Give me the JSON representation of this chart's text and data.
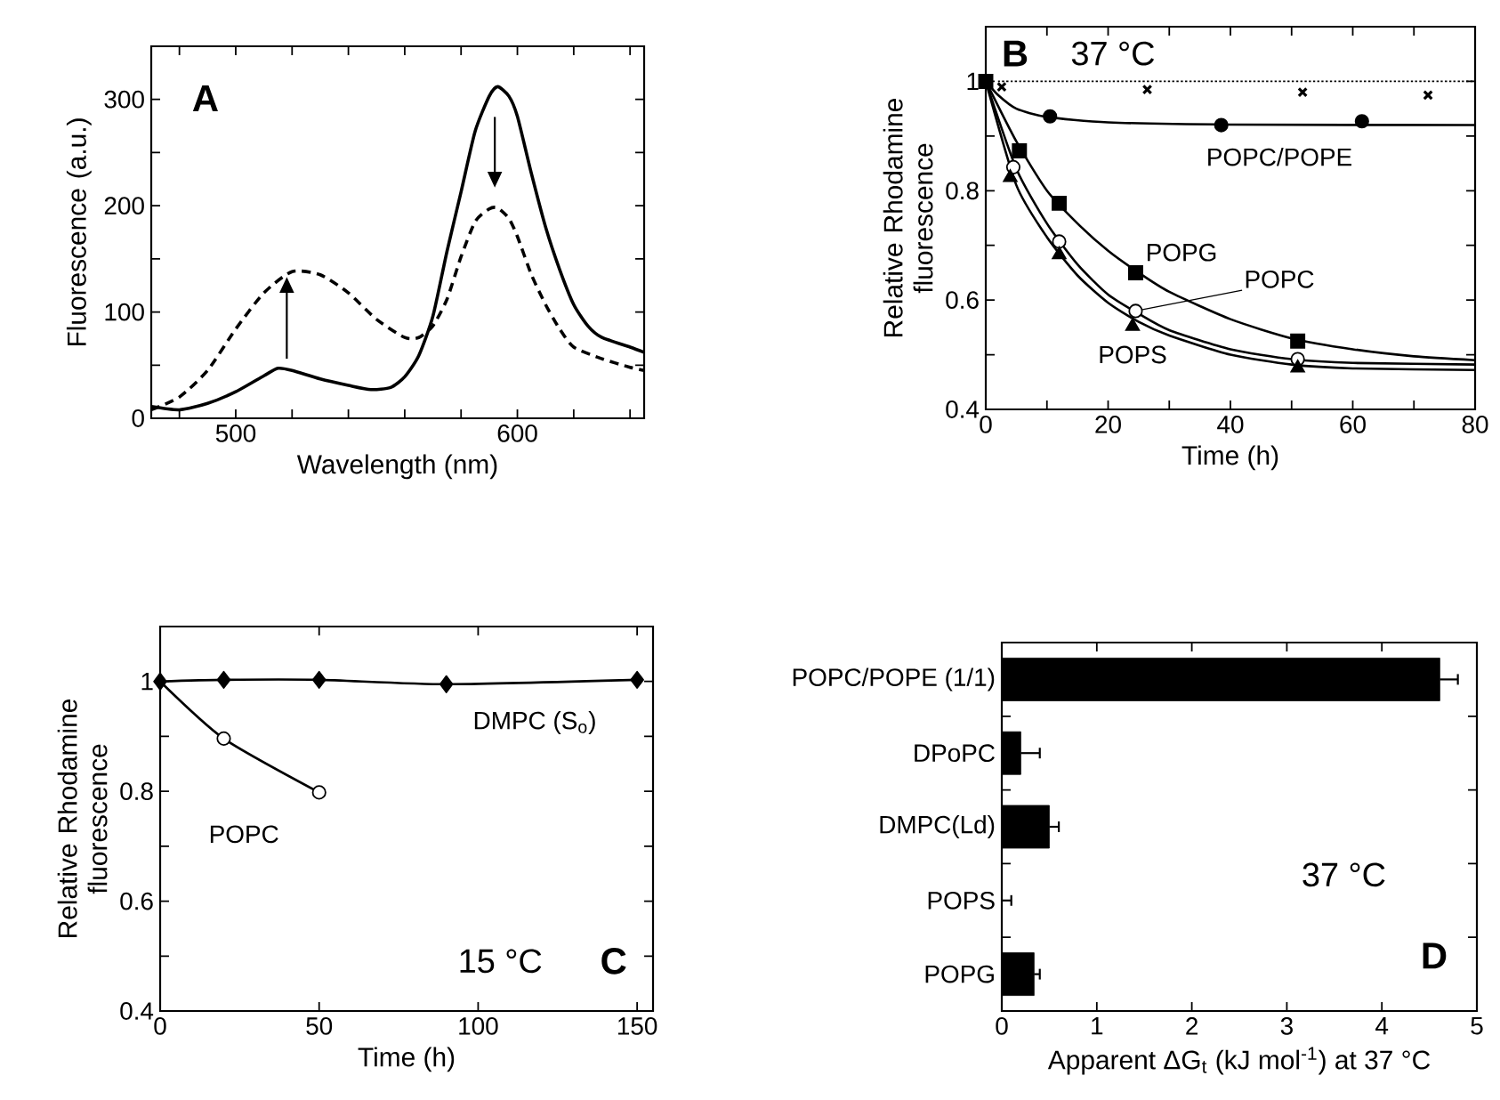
{
  "chart_data": [
    {
      "type": "line",
      "title": "A",
      "xlabel": "Wavelength (nm)",
      "ylabel": "Fluorescence (a.u.)",
      "xlim": [
        470,
        645
      ],
      "ylim": [
        0,
        350
      ],
      "xticks": [
        {
          "value": 480,
          "label": null
        },
        500,
        {
          "value": 520,
          "label": null
        },
        {
          "value": 540,
          "label": null
        },
        {
          "value": 560,
          "label": null
        },
        {
          "value": 580,
          "label": null
        },
        600,
        {
          "value": 620,
          "label": null
        },
        {
          "value": 640,
          "label": null
        }
      ],
      "yticks": [
        0,
        {
          "value": 50,
          "label": null
        },
        100,
        {
          "value": 150,
          "label": null
        },
        200,
        {
          "value": 250,
          "label": null
        },
        300
      ],
      "series": [
        {
          "color": "#000000",
          "line_style": "solid",
          "x": [
            470,
            480,
            490,
            500,
            510,
            515,
            520,
            530,
            540,
            548,
            555,
            560,
            565,
            570,
            575,
            580,
            585,
            590,
            593,
            597,
            600,
            605,
            610,
            615,
            620,
            625,
            630,
            640,
            645
          ],
          "values": [
            11,
            8,
            14,
            25,
            40,
            47,
            45,
            37,
            31,
            27,
            29,
            39,
            59,
            96,
            157,
            213,
            270,
            303,
            312,
            303,
            284,
            230,
            180,
            140,
            107,
            87,
            76,
            67,
            62
          ]
        },
        {
          "color": "#000000",
          "line_style": "dashed",
          "x": [
            470,
            480,
            490,
            500,
            510,
            520,
            530,
            540,
            550,
            560,
            565,
            570,
            575,
            580,
            585,
            590,
            593,
            597,
            600,
            605,
            610,
            615,
            620,
            630,
            640,
            645
          ],
          "values": [
            8,
            20,
            45,
            84,
            118,
            138,
            135,
            118,
            93,
            76,
            76,
            87,
            112,
            152,
            185,
            197,
            198,
            188,
            171,
            135,
            107,
            84,
            67,
            56,
            48,
            45
          ]
        }
      ]
    },
    {
      "type": "line",
      "title": "B",
      "xlabel": "Time (h)",
      "ylabel": "Relative Rhodamine fluorescence",
      "xlim": [
        0,
        80
      ],
      "ylim": [
        0.4,
        1.1
      ],
      "xticks": [
        0,
        {
          "value": 10,
          "label": null
        },
        20,
        {
          "value": 30,
          "label": null
        },
        40,
        {
          "value": 50,
          "label": null
        },
        60,
        {
          "value": 70,
          "label": null
        },
        80
      ],
      "yticks": [
        0.4,
        {
          "value": 0.5,
          "label": null
        },
        0.6,
        {
          "value": 0.7,
          "label": null
        },
        0.8,
        {
          "value": 0.9,
          "label": null
        },
        1
      ],
      "annotations": [
        "37 °C"
      ],
      "series": [
        {
          "type": "line",
          "color": "#000000",
          "line_style": "dotted",
          "marker": "none",
          "x": [
            2,
            80
          ],
          "values": [
            1,
            1
          ]
        },
        {
          "type": "scatter",
          "color": "#000000",
          "marker": "cross",
          "x": [
            2.6,
            26.4,
            51.8,
            72.3
          ],
          "values": [
            0.99,
            0.985,
            0.98,
            0.975
          ]
        },
        {
          "type": "line",
          "color": "#000000",
          "line_style": "solid",
          "marker": "none",
          "x": [
            0,
            2,
            5,
            10,
            20,
            40,
            80
          ],
          "values": [
            1,
            0.975,
            0.95,
            0.935,
            0.925,
            0.921,
            0.92
          ]
        },
        {
          "type": "scatter",
          "name": "POPC/POPE",
          "color": "#000000",
          "marker": "circle",
          "x": [
            10.5,
            38.5,
            61.5
          ],
          "values": [
            0.936,
            0.92,
            0.927
          ]
        },
        {
          "type": "line",
          "color": "#000000",
          "line_style": "solid",
          "marker": "none",
          "x": [
            0,
            5,
            10,
            15,
            20,
            25,
            30,
            40,
            50,
            60,
            70,
            80
          ],
          "values": [
            1,
            0.89,
            0.8,
            0.74,
            0.69,
            0.65,
            0.615,
            0.565,
            0.53,
            0.51,
            0.497,
            0.49
          ]
        },
        {
          "type": "scatter",
          "name": "POPG",
          "color": "#000000",
          "marker": "square",
          "x": [
            0,
            5.5,
            12,
            24.5,
            51
          ],
          "values": [
            1,
            0.873,
            0.777,
            0.65,
            0.525
          ]
        },
        {
          "type": "line",
          "color": "#000000",
          "line_style": "solid",
          "marker": "none",
          "x": [
            0,
            5,
            10,
            15,
            20,
            25,
            30,
            40,
            50,
            60,
            80
          ],
          "values": [
            1,
            0.84,
            0.74,
            0.665,
            0.61,
            0.575,
            0.545,
            0.51,
            0.492,
            0.485,
            0.482
          ]
        },
        {
          "type": "scatter",
          "name": "POPC",
          "color": "#ffffff",
          "marker": "circle",
          "x": [
            4.5,
            12,
            24.5,
            51
          ],
          "values": [
            0.843,
            0.707,
            0.58,
            0.492
          ]
        },
        {
          "type": "line",
          "color": "#000000",
          "line_style": "solid",
          "marker": "none",
          "x": [
            0,
            5,
            10,
            15,
            20,
            25,
            30,
            40,
            50,
            60,
            80
          ],
          "values": [
            1,
            0.81,
            0.715,
            0.645,
            0.595,
            0.56,
            0.535,
            0.5,
            0.482,
            0.475,
            0.472
          ]
        },
        {
          "type": "scatter",
          "name": "POPS",
          "color": "#000000",
          "marker": "triangle",
          "x": [
            4,
            12,
            24,
            51
          ],
          "values": [
            0.824,
            0.683,
            0.552,
            0.476
          ]
        }
      ]
    },
    {
      "type": "line",
      "title": "C",
      "xlabel": "Time (h)",
      "ylabel": "Relative Rhodamine fluorescence",
      "xlim": [
        0,
        155
      ],
      "ylim": [
        0.4,
        1.1
      ],
      "xticks": [
        0,
        50,
        100,
        150
      ],
      "yticks": [
        0.4,
        {
          "value": 0.5,
          "label": null
        },
        0.6,
        {
          "value": 0.7,
          "label": null
        },
        0.8,
        {
          "value": 0.9,
          "label": null
        },
        1
      ],
      "annotations": [
        "15 °C"
      ],
      "series": [
        {
          "type": "line",
          "name": "DMPC (S$_{o}$)",
          "color": "#000000",
          "line_style": "solid",
          "marker": "diamond",
          "x": [
            0,
            20,
            50,
            90,
            150
          ],
          "values": [
            1,
            1.003,
            1.003,
            0.995,
            1.003
          ]
        },
        {
          "type": "line",
          "color": "#000000",
          "line_style": "solid",
          "marker": "none",
          "x": [
            0,
            20,
            50
          ],
          "values": [
            1,
            0.896,
            0.798
          ]
        },
        {
          "type": "scatter",
          "name": "POPC",
          "color": "#ffffff",
          "marker": "circle",
          "x": [
            20,
            50
          ],
          "values": [
            0.896,
            0.798
          ]
        }
      ]
    },
    {
      "type": "bar",
      "orientation": "horizontal",
      "title": "D",
      "xlabel": "Apparent ΔG$_{t}$ (kJ mol$^{-1}$) at 37 °C",
      "xlim": [
        0,
        5
      ],
      "xticks": [
        0,
        1,
        2,
        3,
        4,
        5
      ],
      "categories": [
        "POPC/POPE (1/1)",
        "DPoPC",
        "DMPC(Ld)",
        "POPS",
        "POPG"
      ],
      "values": [
        4.61,
        0.2,
        0.5,
        0,
        0.34
      ],
      "color": "#000000",
      "errors": [
        [
          4.61,
          4.8
        ],
        [
          0.2,
          0.4
        ],
        [
          0.5,
          0.6
        ],
        [
          0,
          0.1
        ],
        [
          0.34,
          0.4
        ]
      ],
      "annotations": [
        "37 °C"
      ]
    }
  ]
}
